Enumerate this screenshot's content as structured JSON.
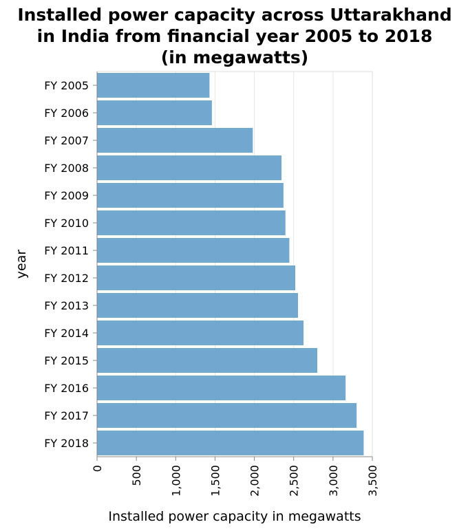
{
  "chart_data": {
    "type": "bar",
    "orientation": "horizontal",
    "title_lines": [
      "Installed power capacity across Uttarakhand",
      "in India from financial year 2005 to 2018",
      "(in megawatts)"
    ],
    "xlabel": "Installed power capacity in megawatts",
    "ylabel": "year",
    "xlim": [
      0,
      3500
    ],
    "xticks": [
      0,
      500,
      1000,
      1500,
      2000,
      2500,
      3000,
      3500
    ],
    "xtick_labels": [
      "0",
      "500",
      "1,000",
      "1,500",
      "2,000",
      "2,500",
      "3,000",
      "3,500"
    ],
    "grid": true,
    "categories": [
      "FY 2005",
      "FY 2006",
      "FY 2007",
      "FY 2008",
      "FY 2009",
      "FY 2010",
      "FY 2011",
      "FY 2012",
      "FY 2013",
      "FY 2014",
      "FY 2015",
      "FY 2016",
      "FY 2017",
      "FY 2018"
    ],
    "values": [
      1430,
      1460,
      1980,
      2345,
      2370,
      2395,
      2445,
      2520,
      2555,
      2625,
      2800,
      3160,
      3300,
      3390
    ],
    "bar_color": "#72a8d0"
  }
}
